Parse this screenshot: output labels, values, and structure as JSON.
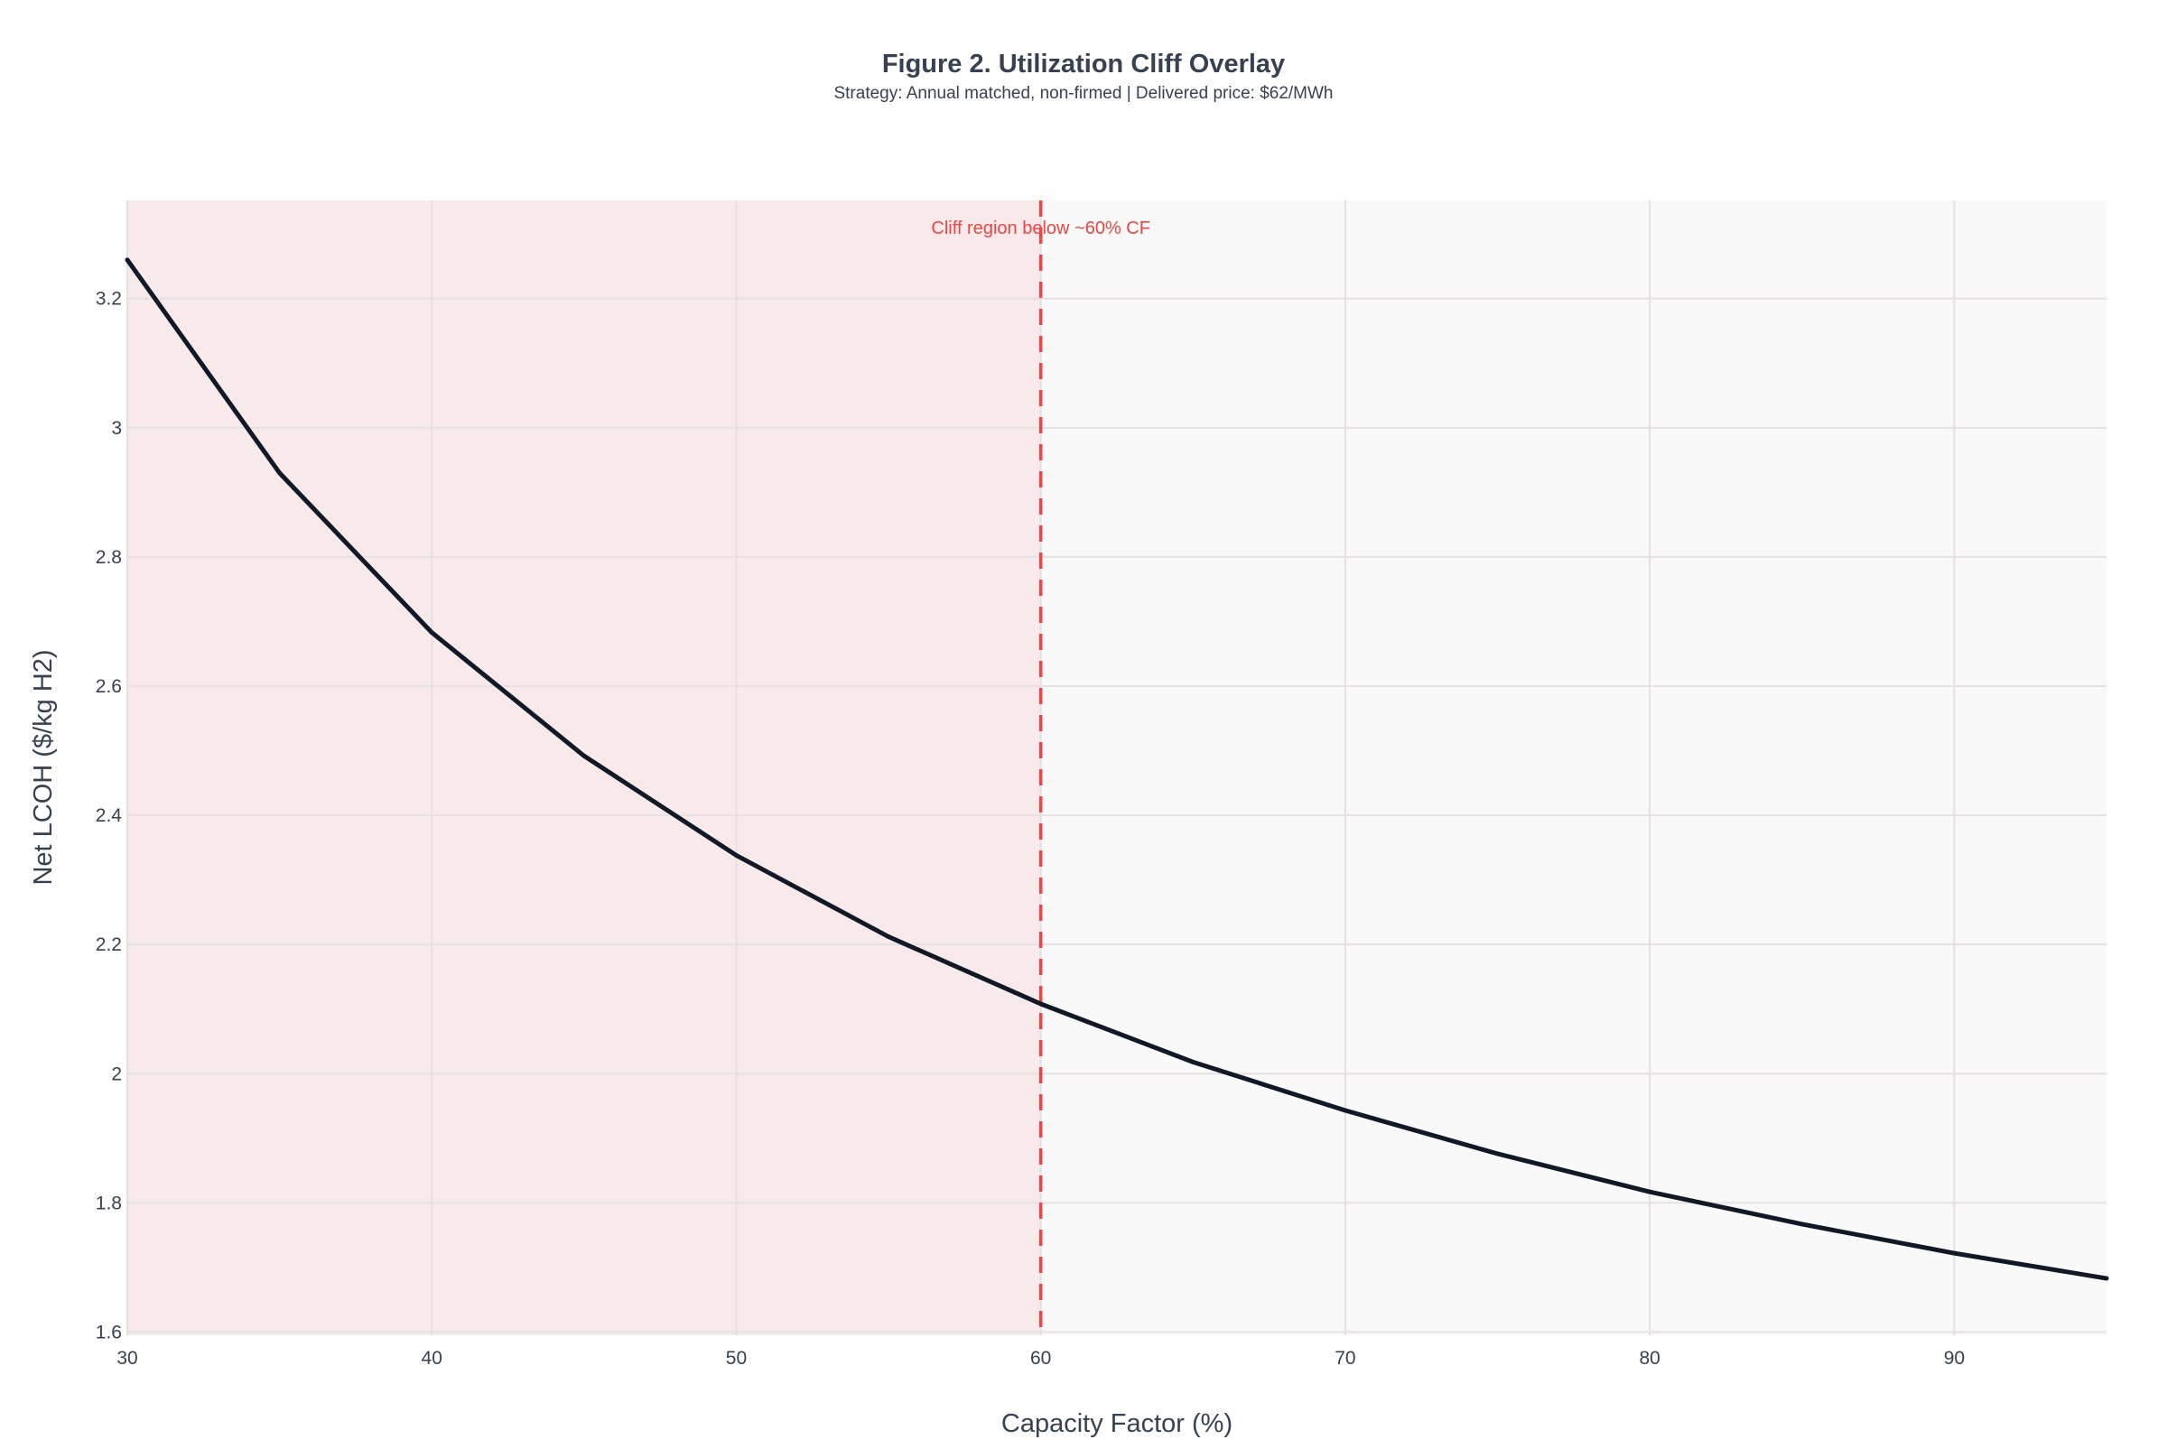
{
  "chart_data": {
    "type": "line",
    "title": "Figure 2. Utilization Cliff Overlay",
    "subtitle": "Strategy: Annual matched, non-firmed | Delivered price: $62/MWh",
    "xlabel": "Capacity Factor (%)",
    "ylabel": "Net LCOH ($/kg H2)",
    "xlim": [
      30,
      95
    ],
    "ylim": [
      1.595,
      3.352
    ],
    "xticks": [
      30,
      40,
      50,
      60,
      70,
      80,
      90
    ],
    "yticks": [
      1.6,
      1.8,
      2,
      2.2,
      2.4,
      2.6,
      2.8,
      3,
      3.2
    ],
    "grid": true,
    "x": [
      30,
      35,
      40,
      45,
      50,
      55,
      60,
      65,
      70,
      75,
      80,
      85,
      90,
      95
    ],
    "series": [
      {
        "values": [
          3.26,
          2.93,
          2.683,
          2.492,
          2.338,
          2.212,
          2.108,
          2.018,
          1.943,
          1.876,
          1.817,
          1.767,
          1.722,
          1.683
        ],
        "color": "#111827"
      }
    ],
    "shaded_region": {
      "x": [
        30,
        60
      ],
      "color": "#f8e9ea"
    },
    "threshold_line": {
      "x": 60,
      "color": "#ef4444",
      "style": "dashed"
    },
    "annotation": {
      "text": "Cliff region below ~60% CF",
      "x": 60,
      "color": "#ef4444"
    },
    "plot_background": "#f9f9f9"
  }
}
